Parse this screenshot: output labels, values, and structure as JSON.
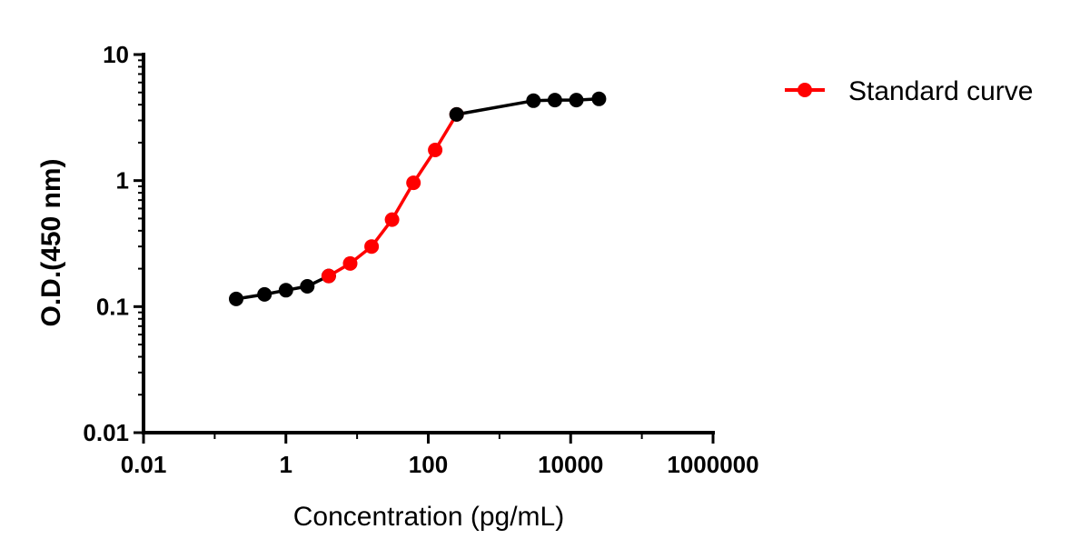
{
  "chart_data": {
    "type": "line",
    "title": "",
    "xlabel": "Concentration (pg/mL)",
    "ylabel": "O.D.(450 nm)",
    "x_scale": "log",
    "y_scale": "log",
    "xlim": [
      0.01,
      1000000
    ],
    "ylim": [
      0.01,
      10
    ],
    "x_tick_labels": [
      "0.01",
      "1",
      "100",
      "10000",
      "1000000"
    ],
    "x_tick_values": [
      0.01,
      1,
      100,
      10000,
      1000000
    ],
    "y_tick_labels": [
      "0.01",
      "0.1",
      "1",
      "10"
    ],
    "y_tick_values": [
      0.01,
      0.1,
      1,
      10
    ],
    "grid": false,
    "legend_position": "top-right",
    "legend": [
      {
        "label": "Standard curve",
        "color": "#ff0000"
      }
    ],
    "series": [
      {
        "name": "",
        "color": "#000000",
        "x": [
          0.2,
          0.5,
          1.0,
          2.0,
          4.0
        ],
        "y": [
          0.115,
          0.125,
          0.135,
          0.145,
          0.175
        ]
      },
      {
        "name": "Standard curve",
        "color": "#ff0000",
        "x": [
          4.0,
          8.0,
          16.0,
          31.0,
          62.0,
          125.0,
          250.0
        ],
        "y": [
          0.175,
          0.22,
          0.3,
          0.49,
          0.96,
          1.75,
          3.35
        ]
      },
      {
        "name": "",
        "color": "#000000",
        "x": [
          250.0,
          3000.0,
          6000.0,
          12000.0,
          25000.0
        ],
        "y": [
          3.35,
          4.3,
          4.35,
          4.35,
          4.45
        ]
      }
    ]
  }
}
